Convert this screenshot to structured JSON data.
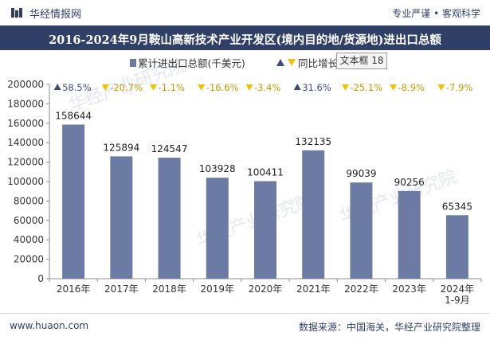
{
  "header": {
    "logo_text": "华经情报网",
    "slogan": "专业严谨 • 客观科学"
  },
  "title": "2016-2024年9月鞍山高新技术产业开发区(境内目的地/货源地)进出口总额",
  "tooltip": "文本框 18",
  "footer": {
    "left": "www.huaon.com",
    "right": "数据来源：中国海关，华经产业研究院整理"
  },
  "watermark": "华经产业研究院",
  "colors": {
    "bar": "#6c7ba3",
    "up": "#3a4d7a",
    "down": "#f2c200",
    "brand": "#2f3f66"
  },
  "chart_data": {
    "type": "bar",
    "categories": [
      "2016年",
      "2017年",
      "2018年",
      "2019年",
      "2020年",
      "2021年",
      "2022年",
      "2023年",
      "2024年\n1-9月"
    ],
    "series": [
      {
        "name": "累计进出口总额(千美元)",
        "values": [
          158644,
          125894,
          124547,
          103928,
          100411,
          132135,
          99039,
          90256,
          65345
        ]
      },
      {
        "name": "同比增长",
        "values": [
          "58.5%",
          "-20.7%",
          "-1.1%",
          "-16.6%",
          "-3.4%",
          "31.6%",
          "-25.1%",
          "-8.9%",
          "-7.9%"
        ],
        "direction": [
          "up",
          "down",
          "down",
          "down",
          "down",
          "up",
          "down",
          "down",
          "down"
        ]
      }
    ],
    "ylim": [
      0,
      200000
    ],
    "yticks": [
      "0",
      "20000",
      "40000",
      "60000",
      "80000",
      "100000",
      "120000",
      "140000",
      "160000",
      "180000",
      "200000"
    ],
    "legend_placement": "top-center",
    "grid": false
  }
}
